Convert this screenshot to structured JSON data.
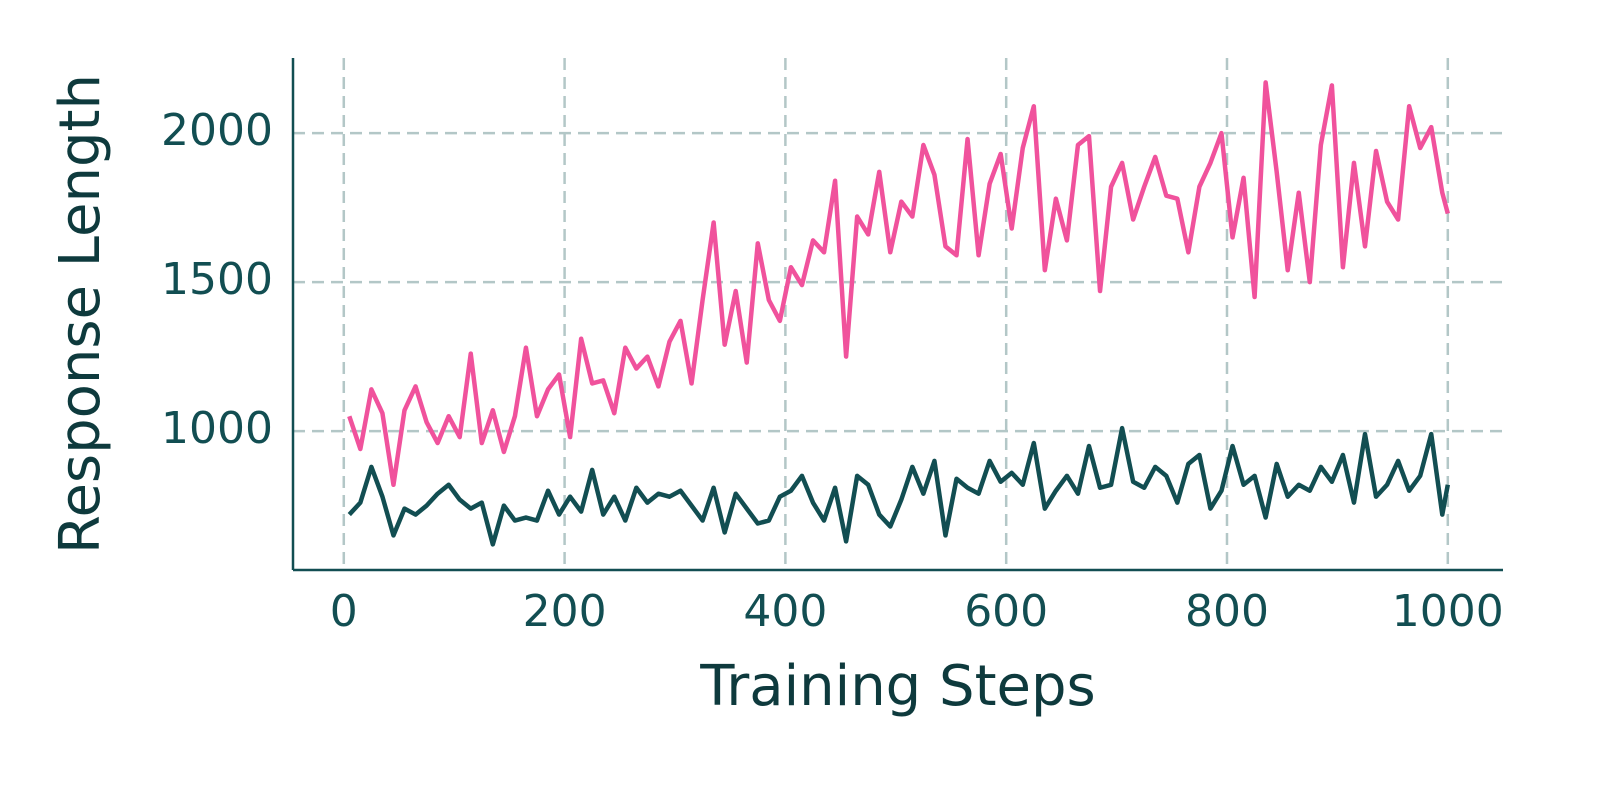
{
  "chart_data": {
    "type": "line",
    "xlabel": "Training Steps",
    "ylabel": "Response Length",
    "x": [
      5,
      15,
      25,
      35,
      45,
      55,
      65,
      75,
      85,
      95,
      105,
      115,
      125,
      135,
      145,
      155,
      165,
      175,
      185,
      195,
      205,
      215,
      225,
      235,
      245,
      255,
      265,
      275,
      285,
      295,
      305,
      315,
      325,
      335,
      345,
      355,
      365,
      375,
      385,
      395,
      405,
      415,
      425,
      435,
      445,
      455,
      465,
      475,
      485,
      495,
      505,
      515,
      525,
      535,
      545,
      555,
      565,
      575,
      585,
      595,
      605,
      615,
      625,
      635,
      645,
      655,
      665,
      675,
      685,
      695,
      705,
      715,
      725,
      735,
      745,
      755,
      765,
      775,
      785,
      795,
      805,
      815,
      825,
      835,
      845,
      855,
      865,
      875,
      885,
      895,
      905,
      915,
      925,
      935,
      945,
      955,
      965,
      975,
      985,
      995,
      1000
    ],
    "series": [
      {
        "color": "#f0529c",
        "values": [
          1050,
          940,
          1140,
          1060,
          820,
          1070,
          1150,
          1030,
          960,
          1050,
          980,
          1260,
          960,
          1070,
          930,
          1050,
          1280,
          1050,
          1140,
          1190,
          980,
          1310,
          1160,
          1170,
          1060,
          1280,
          1210,
          1250,
          1150,
          1300,
          1370,
          1160,
          1440,
          1700,
          1290,
          1470,
          1230,
          1630,
          1440,
          1370,
          1550,
          1490,
          1640,
          1600,
          1840,
          1250,
          1720,
          1660,
          1870,
          1600,
          1770,
          1720,
          1960,
          1860,
          1620,
          1590,
          1980,
          1590,
          1830,
          1930,
          1680,
          1950,
          2090,
          1540,
          1780,
          1640,
          1960,
          1990,
          1470,
          1820,
          1900,
          1710,
          1820,
          1920,
          1790,
          1780,
          1600,
          1820,
          1900,
          2000,
          1650,
          1850,
          1450,
          2170,
          1870,
          1540,
          1800,
          1500,
          1960,
          2160,
          1550,
          1900,
          1620,
          1940,
          1770,
          1710,
          2090,
          1950,
          2020,
          1800,
          1730
        ]
      },
      {
        "color": "#124e52",
        "values": [
          720,
          760,
          880,
          780,
          650,
          740,
          720,
          750,
          790,
          820,
          770,
          740,
          760,
          620,
          750,
          700,
          710,
          700,
          800,
          720,
          780,
          730,
          870,
          720,
          780,
          700,
          810,
          760,
          790,
          780,
          800,
          750,
          700,
          810,
          660,
          790,
          740,
          690,
          700,
          780,
          800,
          850,
          760,
          700,
          810,
          630,
          850,
          820,
          720,
          680,
          770,
          880,
          790,
          900,
          650,
          840,
          810,
          790,
          900,
          830,
          860,
          820,
          960,
          740,
          800,
          850,
          790,
          950,
          810,
          820,
          1010,
          830,
          810,
          880,
          850,
          760,
          890,
          920,
          740,
          800,
          950,
          820,
          850,
          710,
          890,
          780,
          820,
          800,
          880,
          830,
          920,
          760,
          990,
          780,
          820,
          900,
          800,
          850,
          990,
          720,
          820
        ]
      }
    ],
    "xlim": [
      -46,
      1050
    ],
    "xticks": [
      0,
      200,
      400,
      600,
      800,
      1000
    ],
    "ylim": [
      534,
      2252
    ],
    "yticks": [
      1000,
      1500,
      2000
    ],
    "grid": true
  }
}
